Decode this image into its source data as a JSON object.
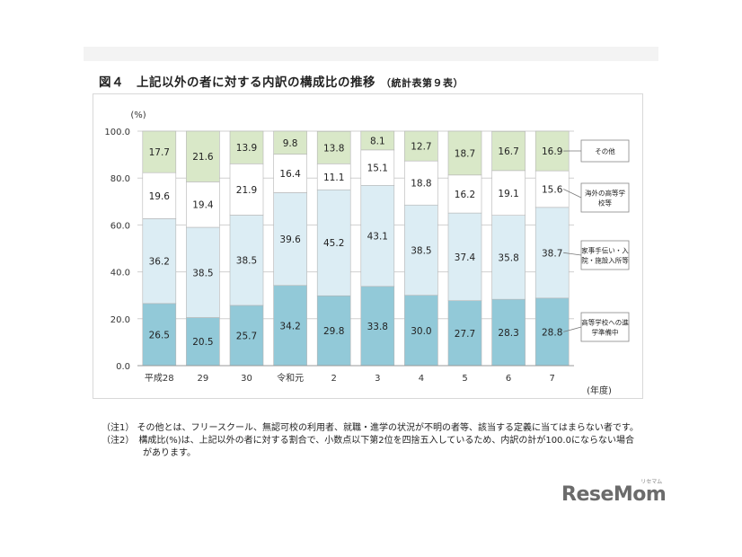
{
  "title": "図４　上記以外の者に対する内訳の構成比の推移",
  "title_sub": "（統計表第９表）",
  "chart_data": {
    "type": "bar",
    "stacked": true,
    "categories": [
      "平成28",
      "29",
      "30",
      "令和元",
      "2",
      "3",
      "4",
      "5",
      "6",
      "7"
    ],
    "x_unit_label": "(年度)",
    "y_unit_label": "(%)",
    "ylim": [
      0,
      100
    ],
    "yticks": [
      "0.0",
      "20.0",
      "40.0",
      "60.0",
      "80.0",
      "100.0"
    ],
    "grid": true,
    "series": [
      {
        "name": "高等学校への進学準備中",
        "color": "#92c9d8",
        "values": [
          26.5,
          20.5,
          25.7,
          34.2,
          29.8,
          33.8,
          30.0,
          27.7,
          28.3,
          28.8
        ],
        "labels": [
          "26.5",
          "20.5",
          "25.7",
          "34.2",
          "29.8",
          "33.8",
          "30.0",
          "27.7",
          "28.3",
          "28.8"
        ]
      },
      {
        "name": "家事手伝い・入院・施設入所等",
        "color": "#dcedf4",
        "values": [
          36.2,
          38.5,
          38.5,
          39.6,
          45.2,
          43.1,
          38.5,
          37.4,
          35.8,
          38.7
        ],
        "labels": [
          "36.2",
          "38.5",
          "38.5",
          "39.6",
          "45.2",
          "43.1",
          "38.5",
          "37.4",
          "35.8",
          "38.7"
        ]
      },
      {
        "name": "海外の高等学校等",
        "color": "#ffffff",
        "values": [
          19.6,
          19.4,
          21.9,
          16.4,
          11.1,
          15.1,
          18.8,
          16.2,
          19.1,
          15.6
        ],
        "labels": [
          "19.6",
          "19.4",
          "21.9",
          "16.4",
          "11.1",
          "15.1",
          "18.8",
          "16.2",
          "19.1",
          "15.6"
        ]
      },
      {
        "name": "その他",
        "color": "#d9e8c8",
        "values": [
          17.7,
          21.6,
          13.9,
          9.8,
          13.8,
          8.1,
          12.7,
          18.7,
          16.7,
          16.9
        ],
        "labels": [
          "17.7",
          "21.6",
          "13.9",
          "9.8",
          "13.8",
          "8.1",
          "12.7",
          "18.7",
          "16.7",
          "16.9"
        ]
      }
    ],
    "legend_labels": [
      [
        "その他"
      ],
      [
        "海外の高等学",
        "校等"
      ],
      [
        "家事手伝い・入",
        "院・施設入所等"
      ],
      [
        "高等学校への進",
        "学準備中"
      ]
    ],
    "legend_placement": "right"
  },
  "notes": [
    "（注1） その他とは、フリースクール、無認可校の利用者、就職・進学の状況が不明の者等、該当する定義に当てはまらない者です。",
    "（注2）　構成比(%)は、上記以外の者に対する割合で、小数点以下第2位を四捨五入しているため、内訳の計が100.0にならない場合",
    "があります。"
  ],
  "logo": {
    "text": "ReseMom",
    "ruby": "リセマム"
  }
}
